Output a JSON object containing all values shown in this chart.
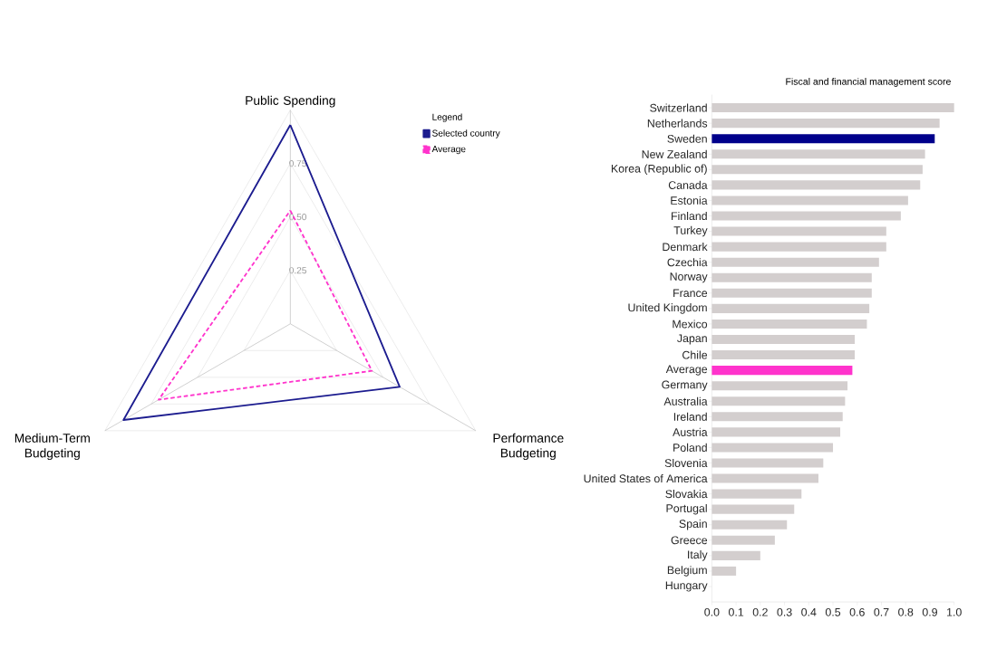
{
  "chart_data": [
    {
      "type": "radar",
      "legend_title": "Legend",
      "categories": [
        "Public Spending",
        "Performance Budgeting",
        "Medium-Term Budgeting"
      ],
      "series": [
        {
          "name": "Selected country",
          "color": "#1c1c8f",
          "values": [
            0.93,
            0.59,
            0.9
          ]
        },
        {
          "name": "Average",
          "color": "#ff33cc",
          "values": [
            0.53,
            0.44,
            0.71
          ],
          "line_style": "dashed"
        }
      ],
      "ylim": [
        0,
        1
      ],
      "yticks": [
        {
          "value": 0.25,
          "label": "0.25"
        },
        {
          "value": 0.5,
          "label": "0.50"
        },
        {
          "value": 0.75,
          "label": "0.75"
        }
      ],
      "grid": true,
      "legend": "top right"
    },
    {
      "type": "bar",
      "orientation": "horizontal",
      "title": "Fiscal and financial management score",
      "categories": [
        "Switzerland",
        "Netherlands",
        "Sweden",
        "New Zealand",
        "Korea (Republic of)",
        "Canada",
        "Estonia",
        "Finland",
        "Turkey",
        "Denmark",
        "Czechia",
        "Norway",
        "France",
        "United Kingdom",
        "Mexico",
        "Japan",
        "Chile",
        "Average",
        "Germany",
        "Australia",
        "Ireland",
        "Austria",
        "Poland",
        "Slovenia",
        "United States of America",
        "Slovakia",
        "Portugal",
        "Spain",
        "Greece",
        "Italy",
        "Belgium",
        "Hungary"
      ],
      "values": [
        1.0,
        0.94,
        0.92,
        0.88,
        0.87,
        0.86,
        0.81,
        0.78,
        0.72,
        0.72,
        0.69,
        0.66,
        0.66,
        0.65,
        0.64,
        0.59,
        0.59,
        0.58,
        0.56,
        0.55,
        0.54,
        0.53,
        0.5,
        0.46,
        0.44,
        0.37,
        0.34,
        0.31,
        0.26,
        0.2,
        0.1,
        0
      ],
      "colors": [
        "#d3cece",
        "#d3cece",
        "#00008b",
        "#d3cece",
        "#d3cece",
        "#d3cece",
        "#d3cece",
        "#d3cece",
        "#d3cece",
        "#d3cece",
        "#d3cece",
        "#d3cece",
        "#d3cece",
        "#d3cece",
        "#d3cece",
        "#d3cece",
        "#d3cece",
        "#ff33cc",
        "#d3cece",
        "#d3cece",
        "#d3cece",
        "#d3cece",
        "#d3cece",
        "#d3cece",
        "#d3cece",
        "#d3cece",
        "#d3cece",
        "#d3cece",
        "#d3cece",
        "#d3cece",
        "#d3cece",
        "#d3cece"
      ],
      "xlim": [
        0,
        1
      ],
      "xticks": [
        {
          "value": 0,
          "label": "0.0"
        },
        {
          "value": 0.1,
          "label": "0.1"
        },
        {
          "value": 0.2,
          "label": "0.2"
        },
        {
          "value": 0.3,
          "label": "0.3"
        },
        {
          "value": 0.4,
          "label": "0.4"
        },
        {
          "value": 0.5,
          "label": "0.5"
        },
        {
          "value": 0.6,
          "label": "0.6"
        },
        {
          "value": 0.7,
          "label": "0.7"
        },
        {
          "value": 0.8,
          "label": "0.8"
        },
        {
          "value": 0.9,
          "label": "0.9"
        },
        {
          "value": 1.0,
          "label": "1.0"
        }
      ]
    }
  ]
}
